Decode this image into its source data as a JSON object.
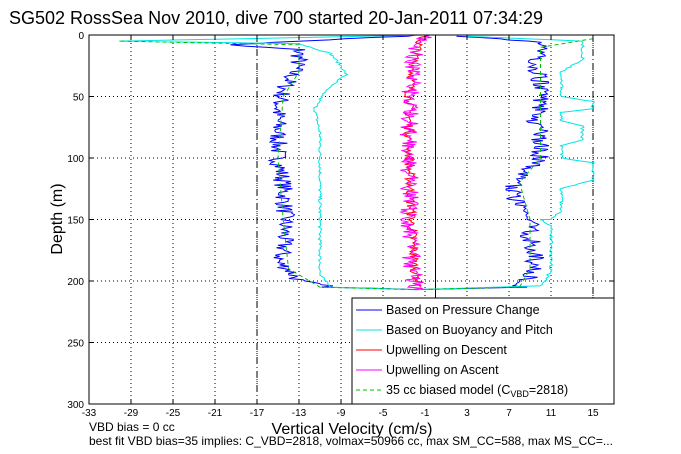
{
  "chart_data": {
    "type": "line",
    "title": "SG502 RossSea Nov 2010, dive 700 started 20-Jan-2011 07:34:29",
    "xlabel": "Vertical Velocity (cm/s)",
    "ylabel": "Depth (m)",
    "xlim": [
      -33,
      17
    ],
    "ylim": [
      300,
      0
    ],
    "x_ticks": [
      -33,
      -29,
      -25,
      -21,
      -17,
      -13,
      -9,
      -5,
      -1,
      3,
      7,
      11,
      15
    ],
    "y_ticks": [
      0,
      50,
      100,
      150,
      200,
      250,
      300
    ],
    "grid": true,
    "legend_placement": "bottom-right",
    "reference_lines": [
      {
        "x": -17,
        "style": "dash-dot"
      },
      {
        "x": 15,
        "style": "dash-dot"
      },
      {
        "x": 0,
        "style": "solid"
      }
    ],
    "series": [
      {
        "name": "Based on Pressure Change",
        "color": "#0000ff",
        "style": "solid",
        "noise": 0.9,
        "points": [
          [
            -1,
            0
          ],
          [
            -20,
            8
          ],
          [
            -13,
            12
          ],
          [
            -13,
            20
          ],
          [
            -13.5,
            30
          ],
          [
            -14.5,
            45
          ],
          [
            -15,
            60
          ],
          [
            -15,
            80
          ],
          [
            -15,
            100
          ],
          [
            -14.5,
            120
          ],
          [
            -14.3,
            150
          ],
          [
            -14.5,
            175
          ],
          [
            -15,
            185
          ],
          [
            -14,
            190
          ],
          [
            -13,
            200
          ],
          [
            -10,
            205
          ],
          [
            -2,
            207
          ],
          [
            8,
            205
          ],
          [
            8.8,
            200
          ],
          [
            9,
            195
          ],
          [
            9.5,
            180
          ],
          [
            9,
            165
          ],
          [
            9,
            150
          ],
          [
            7.8,
            140
          ],
          [
            7.2,
            125
          ],
          [
            8,
            115
          ],
          [
            10,
            100
          ],
          [
            10,
            80
          ],
          [
            9.5,
            70
          ],
          [
            10,
            60
          ],
          [
            10,
            40
          ],
          [
            9.5,
            25
          ],
          [
            10,
            15
          ],
          [
            9.5,
            5
          ],
          [
            2,
            1
          ]
        ]
      },
      {
        "name": "Based on Buoyancy and Pitch",
        "color": "#00e5e5",
        "style": "solid",
        "noise": 0.15,
        "points": [
          [
            -1,
            0
          ],
          [
            -30,
            5
          ],
          [
            -13,
            7
          ],
          [
            -10,
            15
          ],
          [
            -9,
            25
          ],
          [
            -8.5,
            32
          ],
          [
            -9,
            35
          ],
          [
            -10.5,
            45
          ],
          [
            -11.5,
            60
          ],
          [
            -11,
            80
          ],
          [
            -11,
            100
          ],
          [
            -11,
            120
          ],
          [
            -11,
            140
          ],
          [
            -11,
            160
          ],
          [
            -11,
            180
          ],
          [
            -11,
            195
          ],
          [
            -10,
            205
          ],
          [
            -2,
            207
          ],
          [
            10,
            204
          ],
          [
            10.5,
            200
          ],
          [
            11,
            190
          ],
          [
            11,
            170
          ],
          [
            11,
            155
          ],
          [
            10,
            150
          ],
          [
            11,
            150
          ],
          [
            12,
            143
          ],
          [
            12,
            130
          ],
          [
            12,
            125
          ],
          [
            15,
            118
          ],
          [
            15,
            104
          ],
          [
            12,
            100
          ],
          [
            12,
            90
          ],
          [
            14,
            85
          ],
          [
            14,
            74
          ],
          [
            12,
            70
          ],
          [
            12,
            63
          ],
          [
            15,
            60
          ],
          [
            15,
            54
          ],
          [
            12,
            50
          ],
          [
            12,
            30
          ],
          [
            14,
            20
          ],
          [
            14,
            5
          ],
          [
            3,
            1
          ]
        ]
      },
      {
        "name": "Upwelling on Descent",
        "color": "#ff0000",
        "style": "solid",
        "noise": 0.5,
        "points": [
          [
            -1,
            0
          ],
          [
            -1.5,
            5
          ],
          [
            -2,
            20
          ],
          [
            -2.5,
            50
          ],
          [
            -2.5,
            100
          ],
          [
            -2.3,
            150
          ],
          [
            -2,
            190
          ],
          [
            -1.5,
            205
          ]
        ]
      },
      {
        "name": "Upwelling on Ascent",
        "color": "#ff00ff",
        "style": "solid",
        "noise": 0.9,
        "points": [
          [
            -2,
            207
          ],
          [
            -2,
            200
          ],
          [
            -2.3,
            180
          ],
          [
            -2.5,
            150
          ],
          [
            -2.5,
            100
          ],
          [
            -2.5,
            50
          ],
          [
            -2,
            20
          ],
          [
            -1.5,
            5
          ],
          [
            -1,
            1
          ]
        ]
      },
      {
        "name": "35 cc biased model (C_VBD=2818)",
        "color": "#00c000",
        "style": "dashed",
        "noise": 0,
        "points": [
          [
            -30,
            5
          ],
          [
            -13,
            8
          ],
          [
            -13,
            30
          ],
          [
            -14.5,
            50
          ],
          [
            -15,
            100
          ],
          [
            -14.5,
            150
          ],
          [
            -14,
            190
          ],
          [
            -11,
            205
          ],
          [
            -2,
            207
          ],
          [
            8,
            205
          ],
          [
            9,
            190
          ],
          [
            9,
            150
          ],
          [
            8,
            120
          ],
          [
            10,
            100
          ],
          [
            10,
            50
          ],
          [
            10,
            10
          ],
          [
            15,
            3
          ]
        ]
      }
    ],
    "legend_labels": [
      {
        "main": "Based on Pressure Change"
      },
      {
        "main": "Based on Buoyancy and Pitch"
      },
      {
        "main": "Upwelling on Descent"
      },
      {
        "main": "Upwelling on Ascent"
      },
      {
        "main": "35 cc biased model (C",
        "sub": "VBD",
        "tail": "=2818)"
      }
    ]
  },
  "notes": {
    "line1": "VBD bias = 0 cc",
    "line2": "best fit VBD bias=35 implies: C_VBD=2818, volmax=50966 cc, max SM_CC=588, max MS_CC=..."
  }
}
